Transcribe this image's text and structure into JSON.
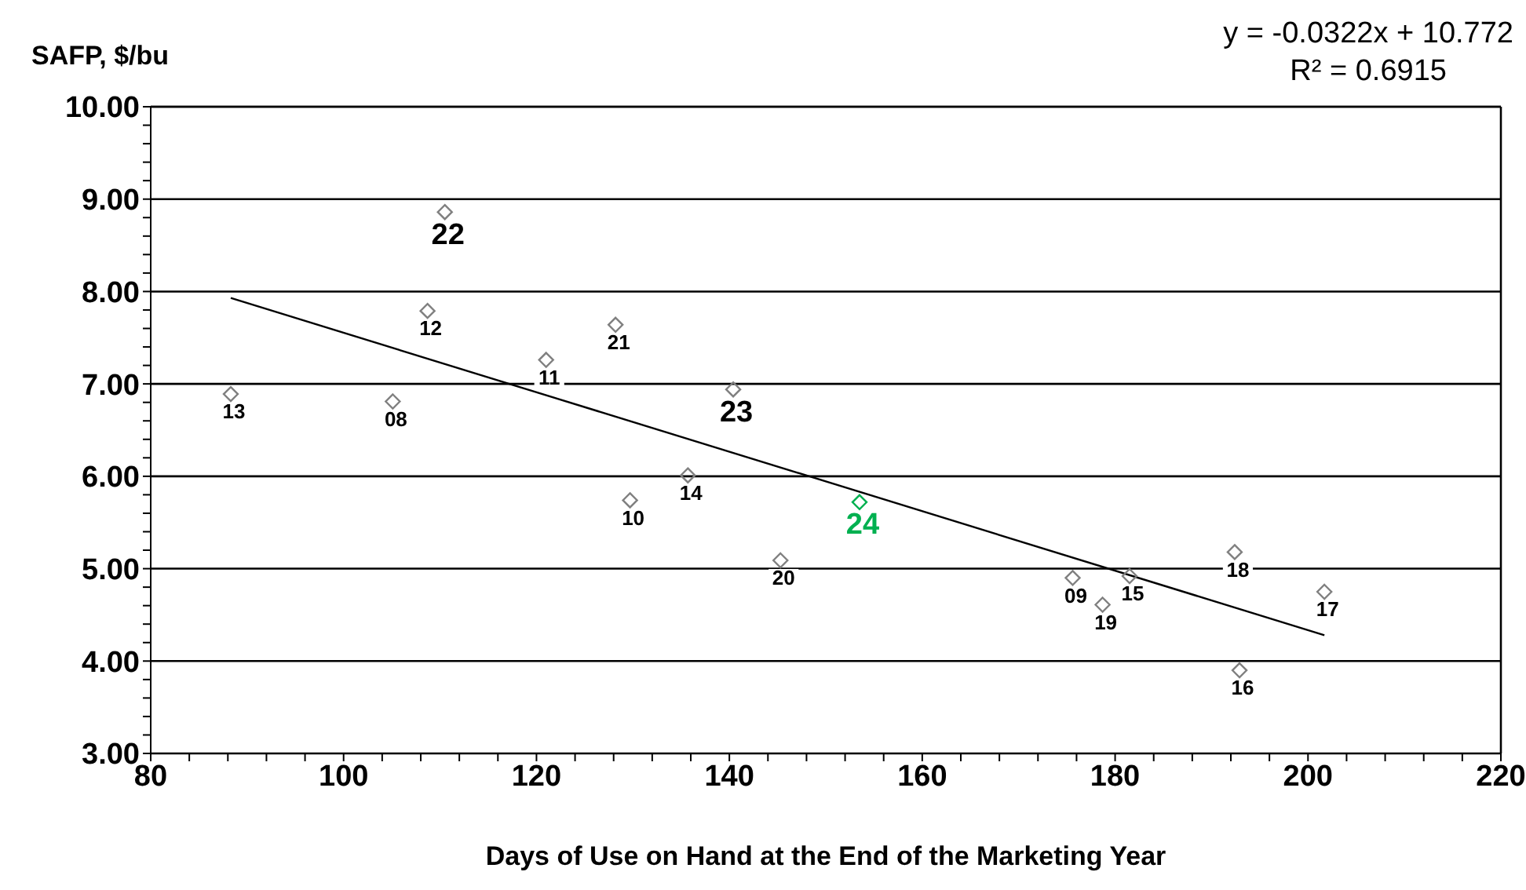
{
  "chart_data": {
    "type": "scatter",
    "xlabel": "Days of Use on Hand at the End of the Marketing Year",
    "ylabel": "SAFP, $/bu",
    "annotations": [
      "y = -0.0322x + 10.772",
      "R² = 0.6915"
    ],
    "xlim": [
      80,
      220
    ],
    "xticks": [
      80,
      {
        "value": 84,
        "label": null
      },
      {
        "value": 88,
        "label": null
      },
      {
        "value": 92,
        "label": null
      },
      {
        "value": 96,
        "label": null
      },
      100,
      {
        "value": 104,
        "label": null
      },
      {
        "value": 108,
        "label": null
      },
      {
        "value": 112,
        "label": null
      },
      {
        "value": 116,
        "label": null
      },
      120,
      {
        "value": 124,
        "label": null
      },
      {
        "value": 128,
        "label": null
      },
      {
        "value": 132,
        "label": null
      },
      {
        "value": 136,
        "label": null
      },
      140,
      {
        "value": 144,
        "label": null
      },
      {
        "value": 148,
        "label": null
      },
      {
        "value": 152,
        "label": null
      },
      {
        "value": 156,
        "label": null
      },
      160,
      {
        "value": 164,
        "label": null
      },
      {
        "value": 168,
        "label": null
      },
      {
        "value": 172,
        "label": null
      },
      {
        "value": 176,
        "label": null
      },
      180,
      {
        "value": 184,
        "label": null
      },
      {
        "value": 188,
        "label": null
      },
      {
        "value": 192,
        "label": null
      },
      {
        "value": 196,
        "label": null
      },
      200,
      {
        "value": 204,
        "label": null
      },
      {
        "value": 208,
        "label": null
      },
      {
        "value": 212,
        "label": null
      },
      {
        "value": 216,
        "label": null
      },
      220
    ],
    "ylim": [
      3,
      10
    ],
    "yticks": [
      {
        "value": 3,
        "label": "3.00"
      },
      {
        "value": 3.2,
        "label": null
      },
      {
        "value": 3.4,
        "label": null
      },
      {
        "value": 3.6,
        "label": null
      },
      {
        "value": 3.8,
        "label": null
      },
      {
        "value": 4,
        "label": "4.00"
      },
      {
        "value": 4.2,
        "label": null
      },
      {
        "value": 4.4,
        "label": null
      },
      {
        "value": 4.6,
        "label": null
      },
      {
        "value": 4.8,
        "label": null
      },
      {
        "value": 5,
        "label": "5.00"
      },
      {
        "value": 5.2,
        "label": null
      },
      {
        "value": 5.4,
        "label": null
      },
      {
        "value": 5.6,
        "label": null
      },
      {
        "value": 5.8,
        "label": null
      },
      {
        "value": 6,
        "label": "6.00"
      },
      {
        "value": 6.2,
        "label": null
      },
      {
        "value": 6.4,
        "label": null
      },
      {
        "value": 6.6,
        "label": null
      },
      {
        "value": 6.8,
        "label": null
      },
      {
        "value": 7,
        "label": "7.00"
      },
      {
        "value": 7.2,
        "label": null
      },
      {
        "value": 7.4,
        "label": null
      },
      {
        "value": 7.6,
        "label": null
      },
      {
        "value": 7.8,
        "label": null
      },
      {
        "value": 8,
        "label": "8.00"
      },
      {
        "value": 8.2,
        "label": null
      },
      {
        "value": 8.4,
        "label": null
      },
      {
        "value": 8.6,
        "label": null
      },
      {
        "value": 8.8,
        "label": null
      },
      {
        "value": 9,
        "label": "9.00"
      },
      {
        "value": 9.2,
        "label": null
      },
      {
        "value": 9.4,
        "label": null
      },
      {
        "value": 9.6,
        "label": null
      },
      {
        "value": 9.8,
        "label": null
      },
      {
        "value": 10,
        "label": "10.00"
      }
    ],
    "grid": "y",
    "legend": false,
    "marker": "diamond",
    "series": [
      {
        "name": "13",
        "color": "#808080",
        "x": [
          88.3
        ],
        "values": [
          6.89
        ]
      },
      {
        "name": "08",
        "color": "#808080",
        "x": [
          105.1
        ],
        "values": [
          6.81
        ]
      },
      {
        "name": "12",
        "color": "#808080",
        "x": [
          108.7
        ],
        "values": [
          7.79
        ]
      },
      {
        "name": "11",
        "color": "#808080",
        "x": [
          121.0
        ],
        "values": [
          7.26
        ]
      },
      {
        "name": "21",
        "color": "#808080",
        "x": [
          128.2
        ],
        "values": [
          7.64
        ]
      },
      {
        "name": "10",
        "color": "#808080",
        "x": [
          129.7
        ],
        "values": [
          5.74
        ]
      },
      {
        "name": "14",
        "color": "#808080",
        "x": [
          135.7
        ],
        "values": [
          6.01
        ]
      },
      {
        "name": "20",
        "color": "#808080",
        "x": [
          145.3
        ],
        "values": [
          5.09
        ]
      },
      {
        "name": "09",
        "color": "#808080",
        "x": [
          175.6
        ],
        "values": [
          4.9
        ]
      },
      {
        "name": "15",
        "color": "#808080",
        "x": [
          181.5
        ],
        "values": [
          4.92
        ]
      },
      {
        "name": "19",
        "color": "#808080",
        "x": [
          178.7
        ],
        "values": [
          4.61
        ]
      },
      {
        "name": "18",
        "color": "#808080",
        "x": [
          192.4
        ],
        "values": [
          5.18
        ]
      },
      {
        "name": "17",
        "color": "#808080",
        "x": [
          201.7
        ],
        "values": [
          4.75
        ]
      },
      {
        "name": "16",
        "color": "#808080",
        "x": [
          192.9
        ],
        "values": [
          3.9
        ]
      },
      {
        "name": "22",
        "color": "#808080",
        "x": [
          110.5
        ],
        "values": [
          8.86
        ]
      },
      {
        "name": "23",
        "color": "#808080",
        "x": [
          140.4
        ],
        "values": [
          6.94
        ]
      },
      {
        "name": "24",
        "color": "#00b050",
        "x": [
          153.5
        ],
        "values": [
          5.72
        ]
      },
      {
        "type": "line",
        "color": "#000000",
        "marker": "none",
        "x": [
          88.3,
          201.7
        ],
        "values": [
          7.93,
          4.28
        ]
      }
    ]
  }
}
